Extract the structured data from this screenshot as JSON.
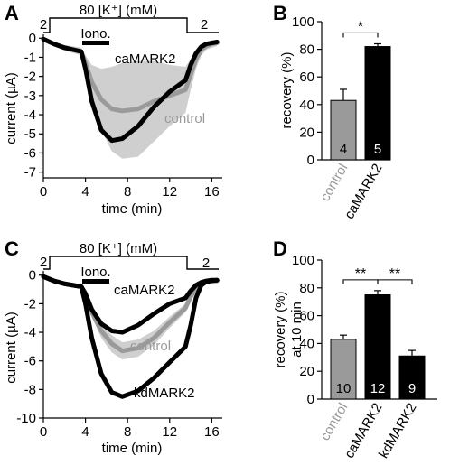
{
  "panels": {
    "A": {
      "letter": "A",
      "protocol": {
        "k_before": "2",
        "k_main": "80 [K⁺] (mM)",
        "k_after": "2",
        "drug": "Iono."
      },
      "labels": {
        "main": "caMARK2",
        "control": "control"
      }
    },
    "B": {
      "letter": "B"
    },
    "C": {
      "letter": "C",
      "protocol": {
        "k_before": "2",
        "k_main": "80 [K⁺] (mM)",
        "k_after": "2",
        "drug": "Iono."
      },
      "labels": {
        "top": "caMARK2",
        "control": "control",
        "bottom": "kdMARK2"
      }
    },
    "D": {
      "letter": "D"
    }
  },
  "colors": {
    "control": "#9a9a9a",
    "control_band": "#cfcfcf",
    "mark2": "#000000"
  },
  "chart_data": [
    {
      "panel": "A",
      "type": "line",
      "xlabel": "time (min)",
      "ylabel": "current (µA)",
      "xlim": [
        0,
        17
      ],
      "ylim": [
        -7.3,
        0.2
      ],
      "xticks": [
        0,
        4,
        8,
        12,
        16
      ],
      "yticks": [
        0,
        -1,
        -2,
        -3,
        -4,
        -5,
        -6,
        -7
      ],
      "series": [
        {
          "name": "control",
          "x": [
            0,
            1,
            2,
            3.6,
            4,
            4.6,
            5.5,
            6.5,
            7.5,
            9,
            10.5,
            12,
            13.5,
            14,
            14.5,
            15,
            15.5,
            16,
            16.5
          ],
          "y": [
            -0.05,
            -0.3,
            -0.5,
            -0.7,
            -1.3,
            -2.3,
            -3.2,
            -3.7,
            -3.8,
            -3.7,
            -3.3,
            -3.0,
            -2.7,
            -1.9,
            -1.1,
            -0.6,
            -0.4,
            -0.3,
            -0.25
          ],
          "band": [
            0.05,
            0.1,
            0.15,
            0.2,
            0.4,
            0.9,
            1.6,
            2.2,
            2.5,
            2.5,
            2.1,
            1.6,
            1.2,
            0.8,
            0.5,
            0.3,
            0.2,
            0.2,
            0.15
          ]
        },
        {
          "name": "caMARK2",
          "x": [
            0,
            1,
            2,
            3.6,
            4,
            4.6,
            5.5,
            6.5,
            7.5,
            9,
            10.5,
            12,
            13.5,
            14,
            14.5,
            15,
            15.5,
            16,
            16.5
          ],
          "y": [
            -0.05,
            -0.3,
            -0.5,
            -0.7,
            -1.6,
            -3.3,
            -4.8,
            -5.35,
            -5.25,
            -4.6,
            -3.6,
            -2.8,
            -2.2,
            -1.4,
            -0.8,
            -0.45,
            -0.3,
            -0.25,
            -0.2
          ]
        }
      ],
      "protocol_bars": {
        "k_high": [
          0.5,
          13.5
        ],
        "drug": [
          4,
          6
        ]
      }
    },
    {
      "panel": "B",
      "type": "bar",
      "ylabel": "recovery (%)",
      "ylim": [
        0,
        100
      ],
      "yticks": [
        0,
        20,
        40,
        60,
        80,
        100
      ],
      "categories": [
        "control",
        "caMARK2"
      ],
      "values": [
        43,
        82
      ],
      "errors": [
        8,
        2
      ],
      "n": [
        "4",
        "5"
      ],
      "significance": [
        {
          "pair": [
            0,
            1
          ],
          "label": "*"
        }
      ]
    },
    {
      "panel": "C",
      "type": "line",
      "xlabel": "time (min)",
      "ylabel": "current (µA)",
      "xlim": [
        0,
        17
      ],
      "ylim": [
        -10,
        0.3
      ],
      "xticks": [
        0,
        4,
        8,
        12,
        16
      ],
      "yticks": [
        0,
        -2,
        -4,
        -6,
        -8,
        -10
      ],
      "series": [
        {
          "name": "control",
          "x": [
            0,
            1,
            2,
            3.6,
            4,
            4.6,
            5.5,
            6.5,
            7.5,
            9,
            10.5,
            12,
            13.5,
            14,
            14.5,
            15,
            15.5,
            16,
            16.5
          ],
          "y": [
            -0.1,
            -0.4,
            -0.6,
            -0.8,
            -1.4,
            -2.6,
            -3.9,
            -4.8,
            -5.3,
            -5.1,
            -4.4,
            -3.3,
            -2.3,
            -1.5,
            -0.9,
            -0.6,
            -0.45,
            -0.4,
            -0.4
          ],
          "band": [
            0.05,
            0.1,
            0.1,
            0.15,
            0.2,
            0.3,
            0.5,
            0.6,
            0.6,
            0.6,
            0.5,
            0.4,
            0.3,
            0.3,
            0.2,
            0.15,
            0.1,
            0.1,
            0.1
          ]
        },
        {
          "name": "caMARK2",
          "x": [
            0,
            1,
            2,
            3.6,
            4,
            4.6,
            5.5,
            6.5,
            7.5,
            9,
            10.5,
            12,
            13.5,
            14,
            14.5,
            15,
            15.5,
            16,
            16.5
          ],
          "y": [
            -0.1,
            -0.4,
            -0.6,
            -0.8,
            -1.3,
            -2.4,
            -3.4,
            -3.9,
            -4.0,
            -3.5,
            -2.7,
            -2.0,
            -1.6,
            -1.1,
            -0.7,
            -0.5,
            -0.4,
            -0.35,
            -0.35
          ]
        },
        {
          "name": "kdMARK2",
          "x": [
            0,
            1,
            2,
            3.6,
            4,
            4.6,
            5.5,
            6.5,
            7.5,
            9,
            10.5,
            12,
            13.5,
            14,
            14.5,
            15,
            15.5,
            16,
            16.5
          ],
          "y": [
            -0.1,
            -0.4,
            -0.6,
            -0.8,
            -2.0,
            -4.4,
            -6.9,
            -8.2,
            -8.5,
            -8.1,
            -7.2,
            -6.1,
            -5.0,
            -3.5,
            -1.6,
            -0.7,
            -0.45,
            -0.4,
            -0.35
          ]
        }
      ],
      "protocol_bars": {
        "k_high": [
          0.5,
          13.5
        ],
        "drug": [
          4,
          6
        ]
      }
    },
    {
      "panel": "D",
      "type": "bar",
      "ylabel": [
        "recovery (%)",
        "at 10 min"
      ],
      "ylim": [
        0,
        100
      ],
      "yticks": [
        0,
        20,
        40,
        60,
        80,
        100
      ],
      "categories": [
        "control",
        "caMARK2",
        "kdMARK2"
      ],
      "values": [
        43,
        75,
        31
      ],
      "errors": [
        3,
        3,
        4
      ],
      "n": [
        "10",
        "12",
        "9"
      ],
      "significance": [
        {
          "pair": [
            0,
            1
          ],
          "label": "**"
        },
        {
          "pair": [
            1,
            2
          ],
          "label": "**"
        }
      ]
    }
  ]
}
